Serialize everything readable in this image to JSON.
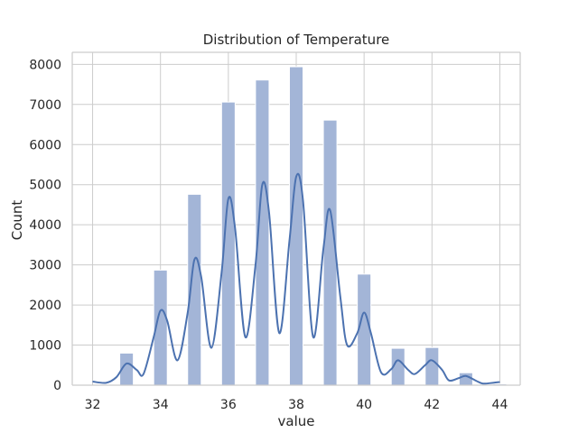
{
  "chart_data": {
    "type": "bar",
    "title": "Distribution of Temperature",
    "xlabel": "value",
    "ylabel": "Count",
    "xlim": [
      31.4,
      44.6
    ],
    "ylim": [
      0,
      8300
    ],
    "x_ticks": [
      32,
      34,
      36,
      38,
      40,
      42,
      44
    ],
    "y_ticks": [
      0,
      1000,
      2000,
      3000,
      4000,
      5000,
      6000,
      7000,
      8000
    ],
    "grid": true,
    "bins": [
      {
        "x": 33,
        "count": 800
      },
      {
        "x": 34,
        "count": 2870
      },
      {
        "x": 35,
        "count": 4760
      },
      {
        "x": 36,
        "count": 7060
      },
      {
        "x": 37,
        "count": 7610
      },
      {
        "x": 38,
        "count": 7940
      },
      {
        "x": 39,
        "count": 6610
      },
      {
        "x": 40,
        "count": 2770
      },
      {
        "x": 41,
        "count": 920
      },
      {
        "x": 42,
        "count": 940
      },
      {
        "x": 43,
        "count": 310
      },
      {
        "x": 44,
        "count": 30
      }
    ],
    "bin_width": 0.4,
    "kde": [
      [
        32.0,
        90
      ],
      [
        32.4,
        60
      ],
      [
        32.7,
        200
      ],
      [
        33.0,
        540
      ],
      [
        33.3,
        380
      ],
      [
        33.5,
        280
      ],
      [
        33.8,
        1200
      ],
      [
        34.0,
        1860
      ],
      [
        34.2,
        1600
      ],
      [
        34.5,
        620
      ],
      [
        34.8,
        1800
      ],
      [
        35.0,
        3130
      ],
      [
        35.2,
        2700
      ],
      [
        35.5,
        930
      ],
      [
        35.8,
        2800
      ],
      [
        36.0,
        4650
      ],
      [
        36.2,
        3900
      ],
      [
        36.5,
        1200
      ],
      [
        36.8,
        3000
      ],
      [
        37.0,
        5000
      ],
      [
        37.2,
        4300
      ],
      [
        37.5,
        1300
      ],
      [
        37.8,
        3600
      ],
      [
        38.0,
        5200
      ],
      [
        38.2,
        4600
      ],
      [
        38.5,
        1200
      ],
      [
        38.8,
        3400
      ],
      [
        39.0,
        4360
      ],
      [
        39.3,
        2200
      ],
      [
        39.5,
        1000
      ],
      [
        39.8,
        1300
      ],
      [
        40.0,
        1810
      ],
      [
        40.2,
        1300
      ],
      [
        40.5,
        320
      ],
      [
        40.8,
        400
      ],
      [
        41.0,
        620
      ],
      [
        41.3,
        380
      ],
      [
        41.5,
        280
      ],
      [
        41.8,
        500
      ],
      [
        42.0,
        620
      ],
      [
        42.3,
        380
      ],
      [
        42.5,
        120
      ],
      [
        42.8,
        180
      ],
      [
        43.0,
        230
      ],
      [
        43.3,
        110
      ],
      [
        43.5,
        40
      ],
      [
        43.8,
        60
      ],
      [
        44.0,
        80
      ]
    ],
    "colors": {
      "bar_fill": "#a3b5d7",
      "bar_stroke": "#ffffff",
      "line": "#4c72b0",
      "grid": "#cccccc",
      "spine": "#cccccc",
      "text": "#262626"
    }
  }
}
